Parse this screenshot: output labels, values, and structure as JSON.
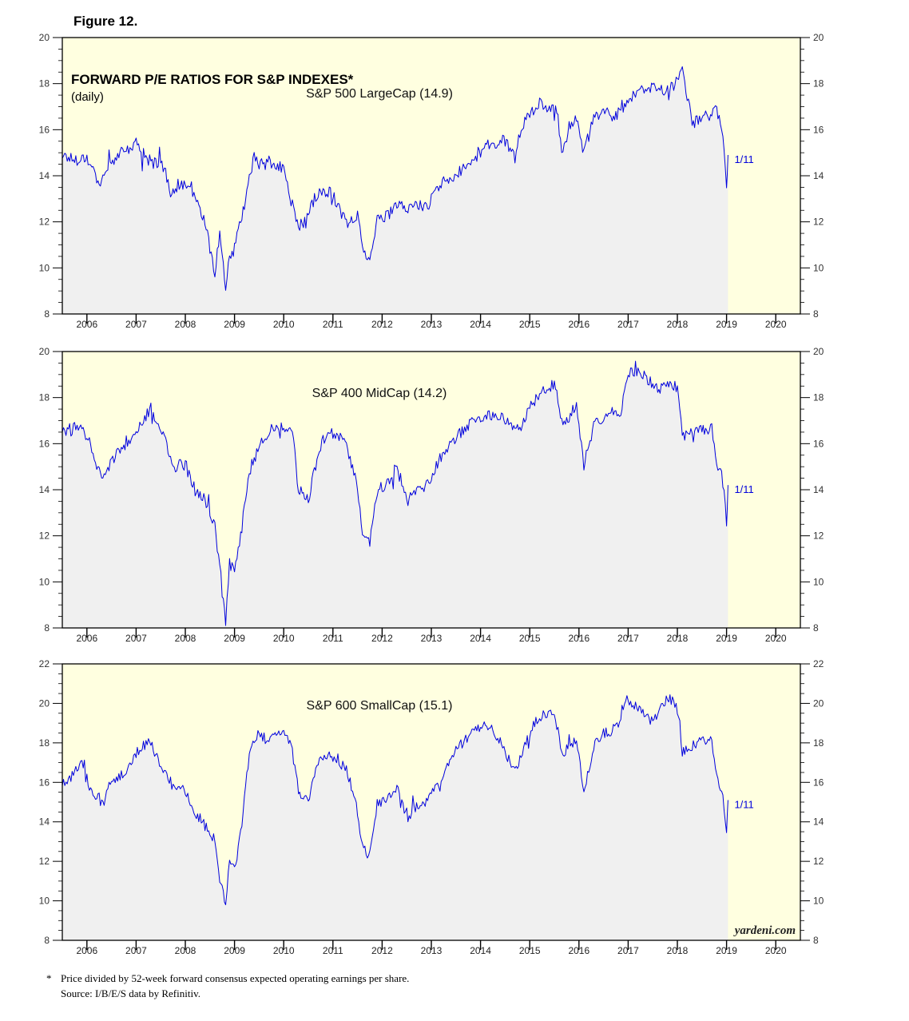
{
  "figure_label": "Figure 12.",
  "title": "FORWARD P/E RATIOS FOR S&P INDEXES*",
  "subtitle": "(daily)",
  "watermark": "yardeni.com",
  "footnote": {
    "marker": "*",
    "text": "Price divided by 52-week forward consensus expected operating earnings per share.",
    "source": "Source: I/B/E/S data by Refinitiv."
  },
  "colors": {
    "line": "#0000dd",
    "plot_background": "#ffffe0",
    "area_fill": "#f0f0f0"
  },
  "chart_data": [
    {
      "type": "line",
      "label": "S&P 500 LargeCap (14.9)",
      "end_annotation": "1/11",
      "x_tick_labels": [
        "2006",
        "2007",
        "2008",
        "2009",
        "2010",
        "2011",
        "2012",
        "2013",
        "2014",
        "2015",
        "2016",
        "2017",
        "2018",
        "2019",
        "2020"
      ],
      "xlim": [
        2005.5,
        2020.5
      ],
      "ylim": [
        8,
        20
      ],
      "y_ticks": [
        8,
        10,
        12,
        14,
        16,
        18,
        20
      ],
      "grid": false,
      "series": [
        {
          "x": [
            2005.5,
            2005.75,
            2006.0,
            2006.25,
            2006.45,
            2006.6,
            2006.75,
            2007.0,
            2007.2,
            2007.4,
            2007.5,
            2007.7,
            2007.85,
            2008.0,
            2008.2,
            2008.4,
            2008.6,
            2008.7,
            2008.82,
            2008.9,
            2009.0,
            2009.2,
            2009.4,
            2009.55,
            2009.7,
            2009.85,
            2010.0,
            2010.2,
            2010.3,
            2010.45,
            2010.6,
            2010.8,
            2011.0,
            2011.15,
            2011.3,
            2011.5,
            2011.6,
            2011.75,
            2011.9,
            2012.1,
            2012.3,
            2012.5,
            2012.7,
            2012.9,
            2013.1,
            2013.3,
            2013.5,
            2013.7,
            2013.9,
            2014.1,
            2014.3,
            2014.5,
            2014.6,
            2014.7,
            2014.8,
            2014.9,
            2015.0,
            2015.2,
            2015.4,
            2015.55,
            2015.65,
            2015.8,
            2015.95,
            2016.1,
            2016.3,
            2016.5,
            2016.7,
            2016.85,
            2017.0,
            2017.2,
            2017.4,
            2017.6,
            2017.75,
            2017.9,
            2018.0,
            2018.05,
            2018.1,
            2018.3,
            2018.5,
            2018.7,
            2018.8,
            2018.9,
            2018.95,
            2019.0,
            2019.03
          ],
          "y": [
            14.9,
            14.7,
            14.8,
            13.7,
            14.3,
            14.9,
            15.0,
            15.4,
            14.8,
            14.5,
            14.8,
            13.3,
            13.6,
            13.5,
            13.0,
            12.0,
            9.8,
            11.5,
            9.0,
            10.5,
            10.8,
            12.8,
            14.8,
            14.4,
            14.6,
            14.4,
            14.3,
            12.5,
            11.8,
            12.0,
            12.9,
            13.4,
            13.2,
            12.5,
            11.8,
            12.4,
            10.8,
            10.5,
            12.1,
            12.2,
            12.7,
            12.6,
            12.8,
            12.6,
            13.4,
            13.8,
            14.1,
            14.3,
            14.8,
            15.3,
            15.3,
            15.6,
            15.2,
            14.8,
            15.8,
            16.3,
            16.8,
            17.1,
            16.8,
            16.9,
            15.0,
            16.1,
            16.5,
            15.0,
            16.5,
            16.8,
            16.5,
            16.9,
            17.3,
            17.5,
            17.9,
            17.7,
            17.7,
            17.9,
            18.2,
            18.5,
            18.5,
            16.3,
            16.5,
            16.7,
            16.9,
            15.9,
            15.3,
            13.5,
            14.9
          ]
        }
      ]
    },
    {
      "type": "line",
      "label": "S&P 400 MidCap (14.2)",
      "end_annotation": "1/11",
      "x_tick_labels": [
        "2006",
        "2007",
        "2008",
        "2009",
        "2010",
        "2011",
        "2012",
        "2013",
        "2014",
        "2015",
        "2016",
        "2017",
        "2018",
        "2019",
        "2020"
      ],
      "xlim": [
        2005.5,
        2020.5
      ],
      "ylim": [
        8,
        20
      ],
      "y_ticks": [
        8,
        10,
        12,
        14,
        16,
        18,
        20
      ],
      "grid": false,
      "series": [
        {
          "x": [
            2005.5,
            2005.7,
            2005.9,
            2006.1,
            2006.3,
            2006.5,
            2006.7,
            2006.9,
            2007.1,
            2007.3,
            2007.45,
            2007.6,
            2007.8,
            2008.0,
            2008.2,
            2008.4,
            2008.6,
            2008.7,
            2008.82,
            2008.9,
            2009.0,
            2009.15,
            2009.3,
            2009.5,
            2009.7,
            2009.9,
            2010.0,
            2010.15,
            2010.3,
            2010.5,
            2010.7,
            2010.9,
            2011.1,
            2011.3,
            2011.5,
            2011.6,
            2011.75,
            2011.9,
            2012.1,
            2012.3,
            2012.5,
            2012.7,
            2012.9,
            2013.1,
            2013.3,
            2013.5,
            2013.7,
            2013.9,
            2014.1,
            2014.3,
            2014.5,
            2014.7,
            2014.9,
            2015.1,
            2015.3,
            2015.5,
            2015.65,
            2015.8,
            2015.95,
            2016.1,
            2016.3,
            2016.5,
            2016.7,
            2016.85,
            2017.0,
            2017.2,
            2017.4,
            2017.6,
            2017.8,
            2018.0,
            2018.05,
            2018.1,
            2018.3,
            2018.5,
            2018.7,
            2018.8,
            2018.9,
            2018.95,
            2019.0,
            2019.03
          ],
          "y": [
            16.6,
            16.6,
            16.8,
            15.8,
            14.5,
            15.2,
            15.8,
            16.3,
            17.0,
            17.5,
            16.6,
            16.1,
            15.0,
            15.1,
            14.0,
            13.5,
            12.4,
            10.5,
            8.2,
            10.8,
            10.5,
            12.4,
            14.8,
            15.8,
            16.6,
            16.8,
            16.6,
            17.0,
            14.0,
            13.5,
            15.6,
            16.6,
            16.4,
            15.8,
            14.0,
            12.3,
            11.8,
            14.0,
            14.2,
            15.0,
            13.5,
            14.0,
            14.2,
            15.0,
            15.8,
            16.3,
            16.7,
            17.0,
            17.3,
            17.2,
            17.0,
            16.6,
            17.1,
            17.9,
            18.4,
            18.6,
            17.0,
            17.2,
            17.6,
            15.0,
            16.8,
            17.2,
            17.4,
            17.3,
            19.0,
            19.1,
            18.8,
            18.4,
            18.5,
            18.5,
            17.5,
            16.3,
            16.7,
            16.6,
            16.6,
            15.0,
            14.6,
            14.0,
            12.6,
            14.2
          ]
        }
      ]
    },
    {
      "type": "line",
      "label": "S&P 600 SmallCap (15.1)",
      "end_annotation": "1/11",
      "x_tick_labels": [
        "2006",
        "2007",
        "2008",
        "2009",
        "2010",
        "2011",
        "2012",
        "2013",
        "2014",
        "2015",
        "2016",
        "2017",
        "2018",
        "2019",
        "2020"
      ],
      "xlim": [
        2005.5,
        2020.5
      ],
      "ylim": [
        8,
        22
      ],
      "y_ticks": [
        8,
        10,
        12,
        14,
        16,
        18,
        20,
        22
      ],
      "grid": false,
      "series": [
        {
          "x": [
            2005.5,
            2005.7,
            2005.9,
            2006.1,
            2006.3,
            2006.5,
            2006.7,
            2006.9,
            2007.1,
            2007.3,
            2007.45,
            2007.6,
            2007.8,
            2008.0,
            2008.2,
            2008.4,
            2008.6,
            2008.7,
            2008.82,
            2008.9,
            2009.0,
            2009.15,
            2009.3,
            2009.5,
            2009.7,
            2009.9,
            2010.0,
            2010.15,
            2010.3,
            2010.5,
            2010.7,
            2010.9,
            2011.1,
            2011.3,
            2011.5,
            2011.6,
            2011.75,
            2011.9,
            2012.1,
            2012.3,
            2012.5,
            2012.7,
            2012.9,
            2013.1,
            2013.3,
            2013.5,
            2013.7,
            2013.9,
            2014.1,
            2014.3,
            2014.5,
            2014.7,
            2014.9,
            2015.1,
            2015.3,
            2015.5,
            2015.65,
            2015.8,
            2015.95,
            2016.1,
            2016.3,
            2016.5,
            2016.65,
            2016.8,
            2016.95,
            2017.1,
            2017.3,
            2017.5,
            2017.7,
            2017.9,
            2018.0,
            2018.05,
            2018.1,
            2018.3,
            2018.5,
            2018.7,
            2018.8,
            2018.9,
            2018.95,
            2019.0,
            2019.03
          ],
          "y": [
            15.9,
            16.3,
            17.0,
            15.5,
            15.0,
            16.0,
            16.4,
            17.0,
            17.8,
            18.0,
            17.1,
            16.5,
            15.5,
            15.6,
            14.5,
            14.0,
            13.0,
            11.0,
            9.9,
            12.0,
            11.5,
            13.8,
            17.5,
            18.5,
            18.0,
            18.5,
            18.6,
            18.0,
            15.5,
            15.0,
            17.0,
            17.4,
            17.2,
            16.5,
            14.5,
            12.8,
            12.4,
            15.0,
            15.1,
            15.8,
            14.2,
            14.8,
            15.0,
            15.7,
            16.8,
            17.6,
            18.2,
            18.6,
            19.0,
            18.5,
            17.6,
            16.5,
            18.0,
            19.0,
            19.5,
            19.6,
            17.5,
            17.8,
            18.2,
            15.6,
            17.8,
            18.5,
            18.5,
            19.0,
            20.3,
            20.0,
            19.6,
            19.0,
            20.1,
            20.2,
            19.7,
            19.0,
            17.6,
            17.8,
            18.2,
            18.2,
            16.2,
            15.5,
            14.8,
            13.4,
            15.1
          ]
        }
      ]
    }
  ]
}
